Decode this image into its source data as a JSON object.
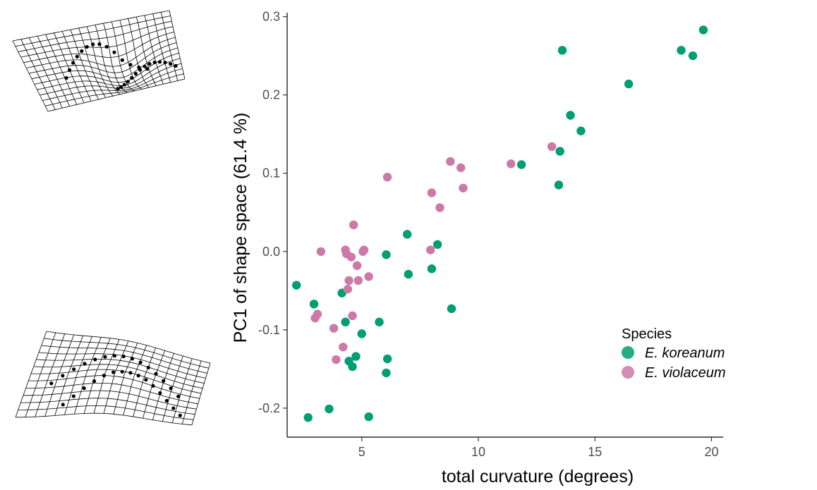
{
  "chart_data": {
    "type": "scatter",
    "xlabel": "total curvature (degrees)",
    "ylabel": "PC1 of shape space (61.4 %)",
    "xlim": [
      1.8,
      20.5
    ],
    "ylim": [
      -0.237,
      0.305
    ],
    "xticks": [
      5,
      10,
      15,
      20
    ],
    "yticks": [
      -0.2,
      -0.1,
      0.0,
      0.1,
      0.2,
      0.3
    ],
    "xtick_labels": [
      "5",
      "10",
      "15",
      "20"
    ],
    "ytick_labels": [
      "-0.2",
      "-0.1",
      "0.0",
      "0.1",
      "0.2",
      "0.3"
    ],
    "grid": false,
    "legend_title": "Species",
    "legend_position": "bottom-right",
    "series": [
      {
        "name": "E. koreanum",
        "color": "#009E73",
        "points": [
          [
            2.2,
            -0.043
          ],
          [
            2.95,
            -0.067
          ],
          [
            2.7,
            -0.212
          ],
          [
            3.6,
            -0.201
          ],
          [
            4.15,
            -0.053
          ],
          [
            4.3,
            -0.09
          ],
          [
            4.45,
            -0.14
          ],
          [
            4.6,
            -0.147
          ],
          [
            4.75,
            -0.134
          ],
          [
            5.0,
            -0.105
          ],
          [
            5.3,
            -0.211
          ],
          [
            5.75,
            -0.09
          ],
          [
            6.05,
            -0.004
          ],
          [
            6.05,
            -0.155
          ],
          [
            6.1,
            -0.137
          ],
          [
            6.95,
            0.022
          ],
          [
            7.0,
            -0.029
          ],
          [
            8.0,
            -0.022
          ],
          [
            8.25,
            0.009
          ],
          [
            8.85,
            -0.073
          ],
          [
            11.85,
            0.111
          ],
          [
            13.45,
            0.085
          ],
          [
            13.5,
            0.128
          ],
          [
            13.6,
            0.257
          ],
          [
            13.95,
            0.174
          ],
          [
            14.4,
            0.154
          ],
          [
            16.45,
            0.214
          ],
          [
            18.7,
            0.257
          ],
          [
            19.2,
            0.25
          ],
          [
            19.65,
            0.283
          ]
        ]
      },
      {
        "name": "E. violaceum",
        "color": "#CC79A7",
        "points": [
          [
            3.0,
            -0.085
          ],
          [
            3.1,
            -0.08
          ],
          [
            3.25,
            0.0
          ],
          [
            3.8,
            -0.098
          ],
          [
            3.9,
            -0.138
          ],
          [
            4.2,
            -0.122
          ],
          [
            4.3,
            0.002
          ],
          [
            4.35,
            -0.003
          ],
          [
            4.4,
            -0.048
          ],
          [
            4.45,
            -0.037
          ],
          [
            4.55,
            -0.007
          ],
          [
            4.6,
            -0.082
          ],
          [
            4.65,
            0.034
          ],
          [
            4.8,
            -0.018
          ],
          [
            4.85,
            -0.037
          ],
          [
            5.05,
            0.0
          ],
          [
            5.1,
            0.002
          ],
          [
            5.3,
            -0.032
          ],
          [
            6.1,
            0.095
          ],
          [
            7.95,
            0.002
          ],
          [
            8.0,
            0.075
          ],
          [
            8.35,
            0.056
          ],
          [
            8.8,
            0.115
          ],
          [
            9.25,
            0.107
          ],
          [
            9.35,
            0.081
          ],
          [
            11.4,
            0.112
          ],
          [
            13.15,
            0.134
          ]
        ]
      }
    ]
  },
  "thumbnails": [
    {
      "name": "upper-deformation-grid"
    },
    {
      "name": "lower-deformation-grid"
    }
  ]
}
